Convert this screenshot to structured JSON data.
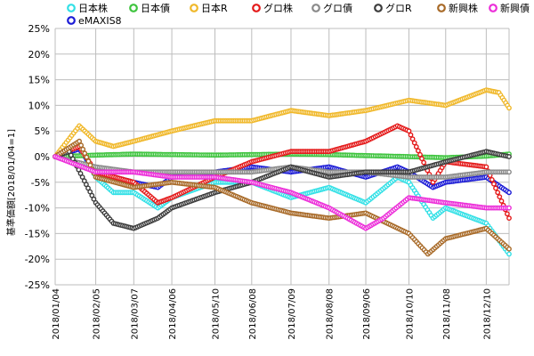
{
  "chart_data": {
    "type": "line",
    "title": "",
    "xlabel": "",
    "ylabel": "基準価額[2018/01/04=1]",
    "ylim": [
      -25,
      25
    ],
    "y_ticks": [
      "25%",
      "20%",
      "15%",
      "10%",
      "5%",
      "0%",
      "-5%",
      "-10%",
      "-15%",
      "-20%",
      "-25%"
    ],
    "y_tick_values": [
      25,
      20,
      15,
      10,
      5,
      0,
      -5,
      -10,
      -15,
      -20,
      -25
    ],
    "x_ticks": [
      "2018/01/04",
      "2018/02/05",
      "2018/03/07",
      "2018/04/06",
      "2018/05/10",
      "2018/06/08",
      "2018/07/09",
      "2018/08/08",
      "2018/09/06",
      "2018/10/10",
      "2018/11/08",
      "2018/12/10"
    ],
    "x_range": [
      "2018/01/04",
      "2018/12/28"
    ],
    "grid": true,
    "legend": "top",
    "series": [
      {
        "name": "日本株",
        "color": "#33e0e6",
        "marker": "ring",
        "points": [
          [
            "2018/01/04",
            0
          ],
          [
            "2018/01/23",
            2
          ],
          [
            "2018/02/05",
            -4
          ],
          [
            "2018/02/19",
            -7
          ],
          [
            "2018/03/07",
            -7
          ],
          [
            "2018/03/26",
            -10
          ],
          [
            "2018/04/06",
            -8
          ],
          [
            "2018/05/10",
            -5
          ],
          [
            "2018/06/08",
            -5
          ],
          [
            "2018/07/09",
            -8
          ],
          [
            "2018/08/08",
            -6
          ],
          [
            "2018/09/06",
            -9
          ],
          [
            "2018/10/01",
            -4
          ],
          [
            "2018/10/10",
            -5
          ],
          [
            "2018/10/29",
            -12
          ],
          [
            "2018/11/08",
            -10
          ],
          [
            "2018/12/10",
            -13
          ],
          [
            "2018/12/28",
            -19
          ]
        ]
      },
      {
        "name": "eMAXIS8",
        "color": "#1c1cd6",
        "marker": "ring",
        "points": [
          [
            "2018/01/04",
            0
          ],
          [
            "2018/01/23",
            1.5
          ],
          [
            "2018/02/05",
            -3
          ],
          [
            "2018/03/07",
            -5
          ],
          [
            "2018/03/26",
            -6
          ],
          [
            "2018/04/06",
            -4
          ],
          [
            "2018/05/10",
            -3
          ],
          [
            "2018/06/08",
            -2
          ],
          [
            "2018/07/09",
            -3
          ],
          [
            "2018/08/08",
            -2
          ],
          [
            "2018/09/06",
            -4
          ],
          [
            "2018/10/01",
            -2
          ],
          [
            "2018/10/10",
            -3
          ],
          [
            "2018/10/29",
            -6
          ],
          [
            "2018/11/08",
            -5
          ],
          [
            "2018/12/10",
            -4
          ],
          [
            "2018/12/28",
            -7
          ]
        ]
      },
      {
        "name": "日本債",
        "color": "#3ec43e",
        "marker": "ring",
        "points": [
          [
            "2018/01/04",
            0
          ],
          [
            "2018/02/05",
            0.3
          ],
          [
            "2018/03/07",
            0.5
          ],
          [
            "2018/04/06",
            0.4
          ],
          [
            "2018/05/10",
            0.3
          ],
          [
            "2018/06/08",
            0.4
          ],
          [
            "2018/07/09",
            0.5
          ],
          [
            "2018/08/08",
            0.4
          ],
          [
            "2018/09/06",
            0.2
          ],
          [
            "2018/10/10",
            0
          ],
          [
            "2018/11/08",
            -0.2
          ],
          [
            "2018/12/10",
            0.1
          ],
          [
            "2018/12/28",
            0.5
          ]
        ]
      },
      {
        "name": "日本R",
        "color": "#f0b82a",
        "marker": "ring",
        "points": [
          [
            "2018/01/04",
            0
          ],
          [
            "2018/01/23",
            6
          ],
          [
            "2018/02/05",
            3
          ],
          [
            "2018/02/19",
            2
          ],
          [
            "2018/03/07",
            3
          ],
          [
            "2018/04/06",
            5
          ],
          [
            "2018/05/10",
            7
          ],
          [
            "2018/06/08",
            7
          ],
          [
            "2018/07/09",
            9
          ],
          [
            "2018/08/08",
            8
          ],
          [
            "2018/09/06",
            9
          ],
          [
            "2018/10/10",
            11
          ],
          [
            "2018/11/08",
            10
          ],
          [
            "2018/12/10",
            13
          ],
          [
            "2018/12/20",
            12.5
          ],
          [
            "2018/12/28",
            9.5
          ]
        ]
      },
      {
        "name": "グロ株",
        "color": "#e41a1a",
        "marker": "ring",
        "points": [
          [
            "2018/01/04",
            0
          ],
          [
            "2018/01/23",
            2
          ],
          [
            "2018/02/05",
            -3
          ],
          [
            "2018/03/07",
            -5
          ],
          [
            "2018/03/26",
            -9
          ],
          [
            "2018/04/06",
            -8
          ],
          [
            "2018/05/10",
            -4
          ],
          [
            "2018/06/08",
            -1
          ],
          [
            "2018/07/09",
            1
          ],
          [
            "2018/08/08",
            1
          ],
          [
            "2018/09/06",
            3
          ],
          [
            "2018/10/01",
            6
          ],
          [
            "2018/10/10",
            5
          ],
          [
            "2018/10/29",
            -5
          ],
          [
            "2018/11/08",
            -1
          ],
          [
            "2018/12/10",
            -2
          ],
          [
            "2018/12/28",
            -12
          ]
        ]
      },
      {
        "name": "グロ債",
        "color": "#8a8a8a",
        "marker": "ring",
        "points": [
          [
            "2018/01/04",
            0
          ],
          [
            "2018/02/05",
            -2
          ],
          [
            "2018/03/07",
            -3
          ],
          [
            "2018/04/06",
            -3
          ],
          [
            "2018/05/10",
            -3
          ],
          [
            "2018/06/08",
            -3
          ],
          [
            "2018/07/09",
            -2
          ],
          [
            "2018/08/08",
            -3
          ],
          [
            "2018/09/06",
            -3
          ],
          [
            "2018/10/10",
            -4
          ],
          [
            "2018/11/08",
            -4
          ],
          [
            "2018/12/10",
            -3
          ],
          [
            "2018/12/28",
            -3
          ]
        ]
      },
      {
        "name": "グロR",
        "color": "#3d3d3d",
        "marker": "ring",
        "points": [
          [
            "2018/01/04",
            0
          ],
          [
            "2018/01/15",
            1
          ],
          [
            "2018/02/05",
            -9
          ],
          [
            "2018/02/19",
            -13
          ],
          [
            "2018/03/07",
            -14
          ],
          [
            "2018/03/26",
            -12
          ],
          [
            "2018/04/06",
            -10
          ],
          [
            "2018/05/10",
            -7
          ],
          [
            "2018/06/08",
            -5
          ],
          [
            "2018/07/09",
            -2
          ],
          [
            "2018/08/08",
            -4
          ],
          [
            "2018/09/06",
            -3
          ],
          [
            "2018/10/10",
            -3
          ],
          [
            "2018/11/08",
            -1
          ],
          [
            "2018/12/10",
            1
          ],
          [
            "2018/12/28",
            0
          ]
        ]
      },
      {
        "name": "新興株",
        "color": "#a86a28",
        "marker": "ring",
        "points": [
          [
            "2018/01/04",
            0
          ],
          [
            "2018/01/23",
            3
          ],
          [
            "2018/02/05",
            -4
          ],
          [
            "2018/03/07",
            -6
          ],
          [
            "2018/04/06",
            -5
          ],
          [
            "2018/05/10",
            -6
          ],
          [
            "2018/06/08",
            -9
          ],
          [
            "2018/07/09",
            -11
          ],
          [
            "2018/08/08",
            -12
          ],
          [
            "2018/09/06",
            -11
          ],
          [
            "2018/10/10",
            -15
          ],
          [
            "2018/10/25",
            -19
          ],
          [
            "2018/11/08",
            -16
          ],
          [
            "2018/12/10",
            -14
          ],
          [
            "2018/12/28",
            -18
          ]
        ]
      },
      {
        "name": "新興債",
        "color": "#ec2ed9",
        "marker": "ring",
        "points": [
          [
            "2018/01/04",
            0
          ],
          [
            "2018/02/05",
            -3
          ],
          [
            "2018/03/07",
            -3
          ],
          [
            "2018/04/06",
            -4
          ],
          [
            "2018/05/10",
            -4
          ],
          [
            "2018/06/08",
            -5
          ],
          [
            "2018/07/09",
            -7
          ],
          [
            "2018/08/08",
            -10
          ],
          [
            "2018/09/06",
            -14
          ],
          [
            "2018/09/20",
            -12
          ],
          [
            "2018/10/10",
            -8
          ],
          [
            "2018/11/08",
            -9
          ],
          [
            "2018/12/10",
            -10
          ],
          [
            "2018/12/28",
            -10
          ]
        ]
      }
    ]
  }
}
